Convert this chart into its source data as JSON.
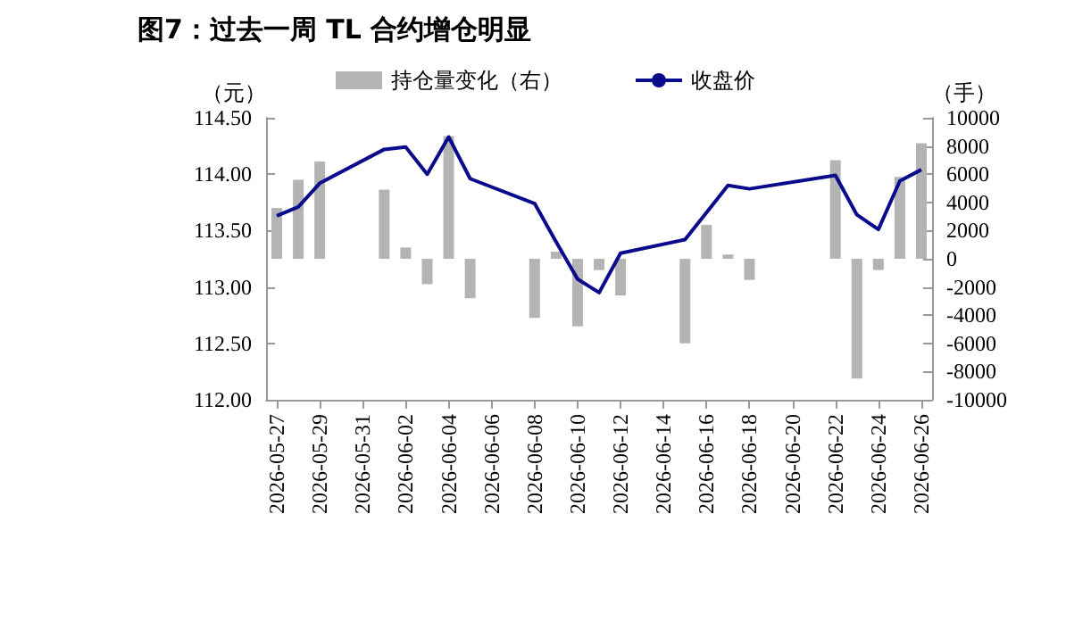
{
  "chart_data": {
    "type": "bar",
    "title": "图7：过去一周 TL 合约增仓明显",
    "ylabel": "（元）",
    "y2label": "（手）",
    "x": [
      "2026-05-27",
      "2026-05-28",
      "2026-05-29",
      "2026-06-01",
      "2026-06-02",
      "2026-06-03",
      "2026-06-04",
      "2026-06-05",
      "2026-06-08",
      "2026-06-09",
      "2026-06-10",
      "2026-06-11",
      "2026-06-12",
      "2026-06-15",
      "2026-06-16",
      "2026-06-17",
      "2026-06-18",
      "2026-06-22",
      "2026-06-23",
      "2026-06-24",
      "2026-06-25",
      "2026-06-26"
    ],
    "series": [
      {
        "name": "持仓量变化（右）",
        "axis": "y2",
        "color": "#b4b4b4",
        "values": [
          3600,
          5600,
          6900,
          4900,
          800,
          -1800,
          8700,
          -2800,
          -4200,
          500,
          -4800,
          -800,
          -2600,
          -6000,
          2400,
          300,
          -1500,
          7000,
          -8500,
          -800,
          5800,
          8200
        ]
      },
      {
        "name": "收盘价",
        "type": "line",
        "color": "#0a0a8c",
        "values": [
          113.63,
          113.71,
          113.92,
          114.22,
          114.24,
          114.0,
          114.33,
          113.96,
          113.74,
          113.4,
          113.07,
          112.95,
          113.3,
          113.42,
          113.66,
          113.9,
          113.87,
          113.99,
          113.64,
          113.51,
          113.94,
          114.04
        ]
      }
    ],
    "xlim": [
      "2026-05-26T12:00",
      "2026-06-26T12:00"
    ],
    "xticks": [
      "2026-05-27",
      "2026-05-29",
      "2026-05-31",
      "2026-06-02",
      "2026-06-04",
      "2026-06-06",
      "2026-06-08",
      "2026-06-10",
      "2026-06-12",
      "2026-06-14",
      "2026-06-16",
      "2026-06-18",
      "2026-06-20",
      "2026-06-22",
      "2026-06-24",
      "2026-06-26"
    ],
    "ylim": [
      112,
      114.5
    ],
    "yticks": [
      {
        "value": 112,
        "label": "112.00"
      },
      {
        "value": 112.5,
        "label": "112.50"
      },
      {
        "value": 113,
        "label": "113.00"
      },
      {
        "value": 113.5,
        "label": "113.50"
      },
      {
        "value": 114,
        "label": "114.00"
      },
      {
        "value": 114.5,
        "label": "114.50"
      }
    ],
    "y2lim": [
      -10000,
      10000
    ],
    "y2ticks": [
      -10000,
      -8000,
      -6000,
      -4000,
      -2000,
      0,
      2000,
      4000,
      6000,
      8000,
      10000
    ],
    "grid": false,
    "legend": "top",
    "marker": "none",
    "line_style": "solid"
  }
}
